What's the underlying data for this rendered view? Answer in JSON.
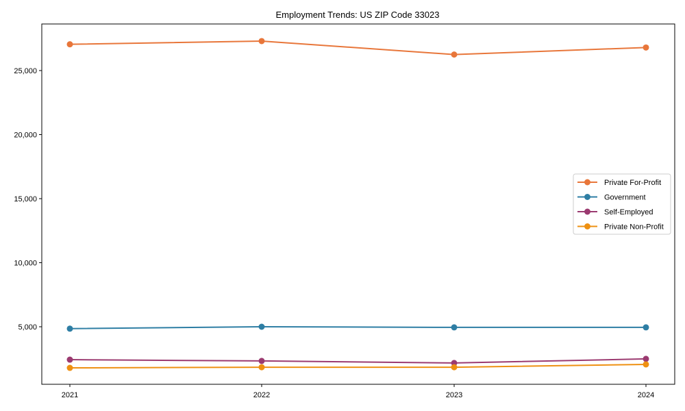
{
  "chart_data": {
    "type": "line",
    "title": "Employment Trends: US ZIP Code 33023",
    "xlabel": "",
    "ylabel": "",
    "categories": [
      "2021",
      "2022",
      "2023",
      "2024"
    ],
    "x": [
      2021,
      2022,
      2023,
      2024
    ],
    "ylim": [
      1000,
      28000
    ],
    "yticks": [
      5000,
      10000,
      15000,
      20000,
      25000
    ],
    "ytick_labels": [
      "5,000",
      "10,000",
      "15,000",
      "20,000",
      "25,000"
    ],
    "grid": false,
    "legend_position": "center right",
    "series": [
      {
        "name": "Private For-Profit",
        "color": "#E8763A",
        "values": [
          27050,
          27300,
          26250,
          26800
        ]
      },
      {
        "name": "Government",
        "color": "#2E7EA4",
        "values": [
          4850,
          5000,
          4950,
          4950
        ]
      },
      {
        "name": "Self-Employed",
        "color": "#9B3A70",
        "values": [
          2430,
          2330,
          2170,
          2490
        ]
      },
      {
        "name": "Private Non-Profit",
        "color": "#EE9012",
        "values": [
          1790,
          1840,
          1840,
          2060
        ]
      }
    ]
  }
}
